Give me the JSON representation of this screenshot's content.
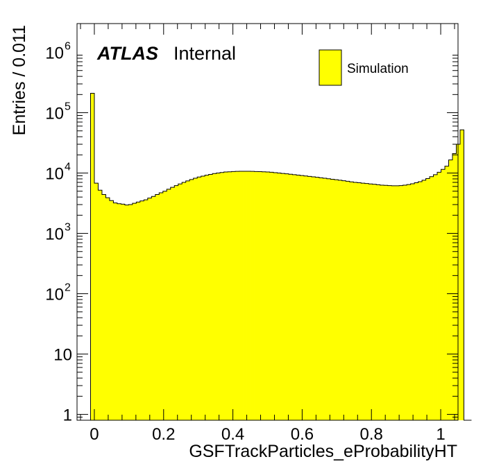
{
  "chart_data": {
    "type": "bar",
    "xlabel": "GSFTrackParticles_eProbabilityHT",
    "ylabel": "Entries / 0.011",
    "x_range": [
      -0.05,
      1.05
    ],
    "y_scale": "log",
    "ylim": [
      0.8,
      3000000
    ],
    "bin_width": 0.011,
    "x_start": -0.011,
    "grid": false,
    "legend_position": "top-right",
    "atlas_label": "ATLAS",
    "atlas_status": "Internal",
    "x_tick_labels": [
      "0",
      "0.2",
      "0.4",
      "0.6",
      "0.8",
      "1"
    ],
    "x_tick_values": [
      0,
      0.2,
      0.4,
      0.6,
      0.8,
      1.0
    ],
    "y_tick_labels": [
      {
        "base": "1",
        "exp": ""
      },
      {
        "base": "10",
        "exp": ""
      },
      {
        "base": "10",
        "exp": "2"
      },
      {
        "base": "10",
        "exp": "3"
      },
      {
        "base": "10",
        "exp": "4"
      },
      {
        "base": "10",
        "exp": "5"
      },
      {
        "base": "10",
        "exp": "6"
      }
    ],
    "y_tick_values": [
      1,
      10,
      100,
      1000,
      10000,
      100000,
      1000000
    ],
    "series": [
      {
        "name": "Simulation",
        "color": "#ffff00",
        "edge_color": "#000000",
        "values": [
          210000,
          6800,
          5200,
          4400,
          3900,
          3500,
          3200,
          3100,
          3050,
          2950,
          3000,
          3150,
          3300,
          3450,
          3600,
          3850,
          4100,
          4400,
          4700,
          5000,
          5400,
          5800,
          6200,
          6600,
          7000,
          7400,
          7800,
          8200,
          8600,
          8900,
          9200,
          9500,
          9800,
          10000,
          10200,
          10400,
          10500,
          10600,
          10650,
          10700,
          10700,
          10700,
          10650,
          10600,
          10550,
          10500,
          10400,
          10300,
          10150,
          10000,
          9850,
          9700,
          9550,
          9400,
          9250,
          9100,
          8950,
          8800,
          8650,
          8500,
          8350,
          8200,
          8050,
          7900,
          7750,
          7600,
          7450,
          7300,
          7150,
          7000,
          6900,
          6800,
          6700,
          6600,
          6500,
          6400,
          6300,
          6250,
          6200,
          6150,
          6150,
          6200,
          6300,
          6450,
          6650,
          6900,
          7200,
          7600,
          8100,
          8700,
          9400,
          10300,
          11500,
          13000,
          16500,
          21000,
          30000,
          52000,
          0,
          0
        ]
      }
    ]
  }
}
